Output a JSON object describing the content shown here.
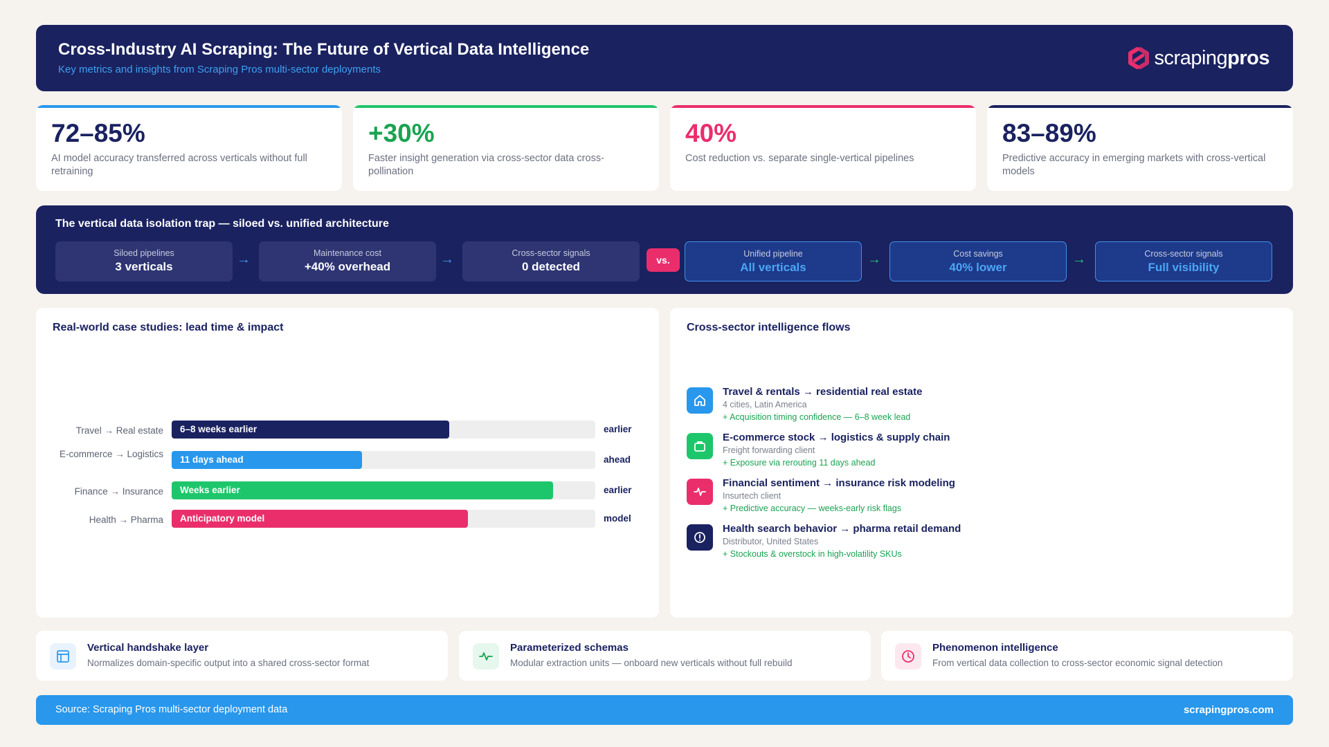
{
  "header": {
    "title": "Cross-Industry AI Scraping: The Future of Vertical Data Intelligence",
    "subtitle": "Key metrics and insights from Scraping Pros multi-sector deployments",
    "logo_word_regular": "scraping",
    "logo_word_bold": "pros"
  },
  "kpis": [
    {
      "value": "72–85%",
      "desc": "AI model accuracy transferred across verticals without full retraining",
      "accent": "#2897ec",
      "value_color": "#1a2260"
    },
    {
      "value": "+30%",
      "desc": "Faster insight generation via cross-sector data cross-pollination",
      "accent": "#1ec66b",
      "value_color": "#1aa351"
    },
    {
      "value": "40%",
      "desc": "Cost reduction vs. separate single-vertical pipelines",
      "accent": "#ea2e6c",
      "value_color": "#ea2e6c"
    },
    {
      "value": "83–89%",
      "desc": "Predictive accuracy in emerging markets with cross-vertical models",
      "accent": "#1a2260",
      "value_color": "#1a2260"
    }
  ],
  "isolation": {
    "title": "The vertical data isolation trap — siloed vs. unified architecture",
    "vs_label": "vs.",
    "siloed": [
      {
        "label": "Siloed pipelines",
        "value": "3 verticals"
      },
      {
        "label": "Maintenance cost",
        "value": "+40% overhead"
      },
      {
        "label": "Cross-sector signals",
        "value": "0 detected"
      }
    ],
    "unified": [
      {
        "label": "Unified pipeline",
        "value": "All verticals"
      },
      {
        "label": "Cost savings",
        "value": "40% lower"
      },
      {
        "label": "Cross-sector signals",
        "value": "Full visibility"
      }
    ],
    "siloed_arrow_color": "#3f93ea",
    "unified_arrow_color": "#1ec66b"
  },
  "cases": {
    "title": "Real-world case studies: lead time & impact",
    "items": [
      {
        "label": "Travel → Real estate",
        "bar_text": "6–8 weeks earlier",
        "end": "earlier",
        "fill_fraction": 0.655,
        "color": "#1a2260"
      },
      {
        "label": "E-commerce → Logistics",
        "bar_text": "11 days ahead",
        "end": "ahead",
        "fill_fraction": 0.45,
        "color": "#2897ec"
      },
      {
        "label": "Finance → Insurance",
        "bar_text": "Weeks earlier",
        "end": "earlier",
        "fill_fraction": 0.9,
        "color": "#1ec66b"
      },
      {
        "label": "Health → Pharma",
        "bar_text": "Anticipatory model",
        "end": "model",
        "fill_fraction": 0.7,
        "color": "#ea2e6c"
      }
    ]
  },
  "flows": {
    "title": "Cross-sector intelligence flows",
    "items": [
      {
        "title": "Travel & rentals → residential real estate",
        "sub": "4 cities, Latin America",
        "result": "+ Acquisition timing confidence — 6–8 week lead",
        "icon": "home-icon",
        "color": "#2897ec"
      },
      {
        "title": "E-commerce stock → logistics & supply chain",
        "sub": "Freight forwarding client",
        "result": "+ Exposure via rerouting 11 days ahead",
        "icon": "briefcase-icon",
        "color": "#1ec66b"
      },
      {
        "title": "Financial sentiment → insurance risk modeling",
        "sub": "Insurtech client",
        "result": "+ Predictive accuracy — weeks-early risk flags",
        "icon": "pulse-icon",
        "color": "#ea2e6c"
      },
      {
        "title": "Health search behavior → pharma retail demand",
        "sub": "Distributor, United States",
        "result": "+ Stockouts & overstock in high-volatility SKUs",
        "icon": "alert-icon",
        "color": "#1a2260"
      }
    ]
  },
  "features": [
    {
      "title": "Vertical handshake layer",
      "desc": "Normalizes domain-specific output into a shared cross-sector format",
      "icon": "layout-icon",
      "color": "#2897ec",
      "bg": "#e8f3fd"
    },
    {
      "title": "Parameterized schemas",
      "desc": "Modular extraction units — onboard new verticals without full rebuild",
      "icon": "pulse-icon",
      "color": "#1aa351",
      "bg": "#e6f7ee"
    },
    {
      "title": "Phenomenon intelligence",
      "desc": "From vertical data collection to cross-sector economic signal detection",
      "icon": "clock-icon",
      "color": "#ea2e6c",
      "bg": "#fde8ef"
    }
  ],
  "footer": {
    "source": "Source: Scraping Pros multi-sector deployment data",
    "site": "scrapingpros.com"
  }
}
